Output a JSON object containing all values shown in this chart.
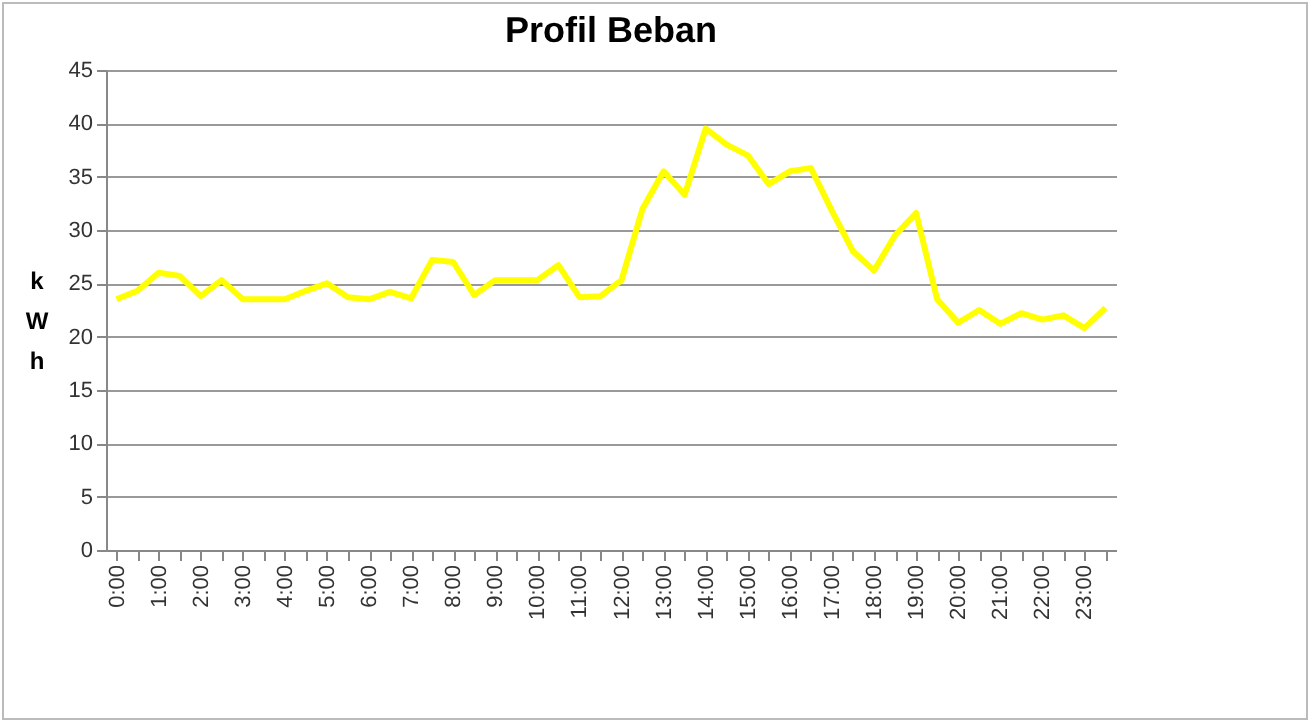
{
  "chart_data": {
    "type": "line",
    "title": "Profil Beban",
    "ylabel": "kWh",
    "categories": [
      "0:00",
      null,
      "1:00",
      null,
      "2:00",
      null,
      "3:00",
      null,
      "4:00",
      null,
      "5:00",
      null,
      "6:00",
      null,
      "7:00",
      null,
      "8:00",
      null,
      "9:00",
      null,
      "10:00",
      null,
      "11:00",
      null,
      "12:00",
      null,
      "13:00",
      null,
      "14:00",
      null,
      "15:00",
      null,
      "16:00",
      null,
      "17:00",
      null,
      "18:00",
      null,
      "19:00",
      null,
      "20:00",
      null,
      "21:00",
      null,
      "22:00",
      null,
      "23:00",
      null
    ],
    "series": [
      {
        "color": "#ffff00",
        "values": [
          23.5,
          24.3,
          26,
          25.7,
          23.8,
          25.3,
          23.5,
          23.5,
          23.5,
          24.3,
          25,
          23.7,
          23.5,
          24.2,
          23.6,
          27.2,
          27,
          23.9,
          25.3,
          25.3,
          25.3,
          26.7,
          23.7,
          23.8,
          25.3,
          32,
          35.5,
          33.3,
          39.5,
          38,
          37,
          34.3,
          35.5,
          35.8,
          31.8,
          28,
          26.2,
          29.5,
          31.6,
          23.5,
          21.3,
          22.5,
          21.2,
          22.2,
          21.6,
          22,
          20.8,
          22.7
        ]
      }
    ],
    "ylim": [
      0,
      45
    ],
    "yticks": [
      0,
      5,
      10,
      15,
      20,
      25,
      30,
      35,
      40,
      45
    ],
    "grid": "y",
    "marker": "none",
    "line_style": "solid"
  }
}
